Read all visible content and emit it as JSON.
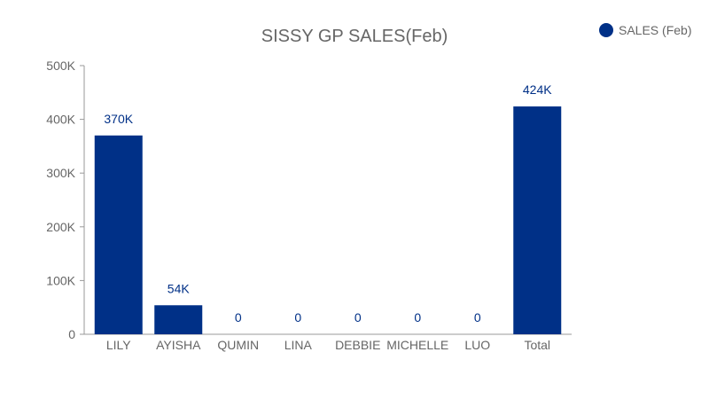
{
  "chart_data": {
    "type": "bar",
    "title": "SISSY GP SALES(Feb)",
    "xlabel": "",
    "ylabel": "",
    "categories": [
      "LILY",
      "AYISHA",
      "QUMIN",
      "LINA",
      "DEBBIE",
      "MICHELLE",
      "LUO",
      "Total"
    ],
    "series": [
      {
        "name": "SALES (Feb)",
        "values": [
          370000,
          54000,
          0,
          0,
          0,
          0,
          0,
          424000
        ],
        "labels": [
          "370K",
          "54K",
          "0",
          "0",
          "0",
          "0",
          "0",
          "424K"
        ],
        "color": "#003087"
      }
    ],
    "ylim": [
      0,
      500000
    ],
    "yticks": [
      0,
      100000,
      200000,
      300000,
      400000,
      500000
    ],
    "ytick_labels": [
      "0",
      "100K",
      "200K",
      "300K",
      "400K",
      "500K"
    ],
    "grid": false,
    "legend_position": "top-right"
  },
  "colors": {
    "bar": "#003087",
    "axis": "#999999",
    "text": "#666666"
  }
}
